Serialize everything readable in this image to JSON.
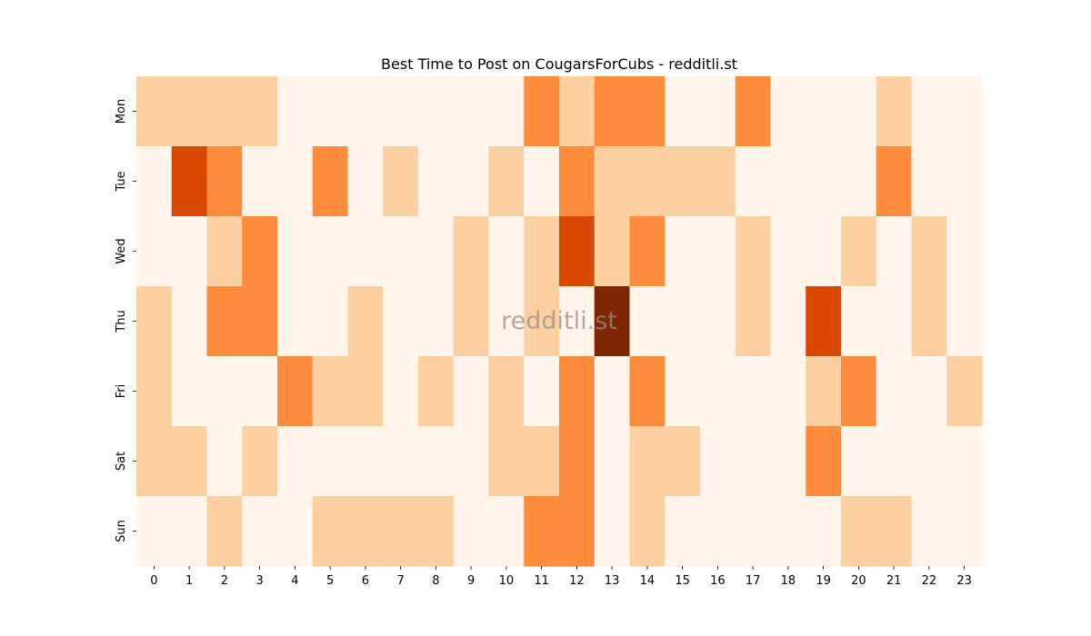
{
  "chart_data": {
    "type": "heatmap",
    "title": "Best Time to Post on CougarsForCubs - redditli.st",
    "watermark": "redditli.st",
    "x_labels": [
      "0",
      "1",
      "2",
      "3",
      "4",
      "5",
      "6",
      "7",
      "8",
      "9",
      "10",
      "11",
      "12",
      "13",
      "14",
      "15",
      "16",
      "17",
      "18",
      "19",
      "20",
      "21",
      "22",
      "23"
    ],
    "y_labels": [
      "Mon",
      "Tue",
      "Wed",
      "Thu",
      "Fri",
      "Sat",
      "Sun"
    ],
    "scale_max": 4,
    "colormap": "Oranges",
    "level_colors": [
      "#fff5eb",
      "#fdd0a2",
      "#fd8d3c",
      "#d94801",
      "#7f2704"
    ],
    "values": [
      [
        1,
        1,
        1,
        1,
        0,
        0,
        0,
        0,
        0,
        0,
        0,
        2,
        1,
        2,
        2,
        0,
        0,
        2,
        0,
        0,
        0,
        1,
        0,
        0
      ],
      [
        0,
        3,
        2,
        0,
        0,
        2,
        0,
        1,
        0,
        0,
        1,
        0,
        2,
        1,
        1,
        1,
        1,
        0,
        0,
        0,
        0,
        2,
        0,
        0
      ],
      [
        0,
        0,
        1,
        2,
        0,
        0,
        0,
        0,
        0,
        1,
        0,
        1,
        3,
        1,
        2,
        0,
        0,
        1,
        0,
        0,
        1,
        0,
        1,
        0
      ],
      [
        1,
        0,
        2,
        2,
        0,
        0,
        1,
        0,
        0,
        1,
        0,
        1,
        0,
        4,
        0,
        0,
        0,
        1,
        0,
        3,
        0,
        0,
        1,
        0
      ],
      [
        1,
        0,
        0,
        0,
        2,
        1,
        1,
        0,
        1,
        0,
        1,
        0,
        2,
        0,
        2,
        0,
        0,
        0,
        0,
        1,
        2,
        0,
        0,
        1
      ],
      [
        1,
        1,
        0,
        1,
        0,
        0,
        0,
        0,
        0,
        0,
        1,
        1,
        2,
        0,
        1,
        1,
        0,
        0,
        0,
        2,
        0,
        0,
        0,
        0
      ],
      [
        0,
        0,
        1,
        0,
        0,
        1,
        1,
        1,
        1,
        0,
        0,
        2,
        2,
        0,
        1,
        0,
        0,
        0,
        0,
        0,
        1,
        1,
        0,
        0
      ]
    ]
  }
}
